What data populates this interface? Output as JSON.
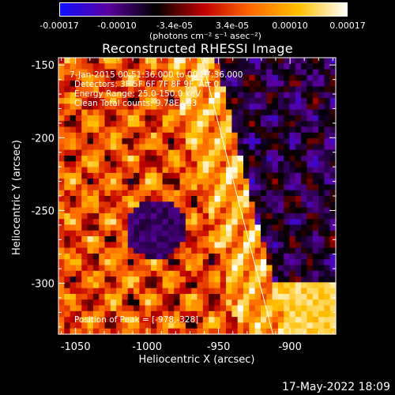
{
  "colorbar": {
    "ticks": [
      "-0.00017",
      "-0.00010",
      "-3.4e-05",
      "3.4e-05",
      "0.00010",
      "0.00017"
    ],
    "units": "(photons cm⁻² s⁻¹ asec⁻²)",
    "colors": [
      "#1010ff",
      "#5a00a0",
      "#000000",
      "#c00000",
      "#ff6a00",
      "#ffc000",
      "#ffffff"
    ]
  },
  "chart_data": {
    "type": "heatmap",
    "title": "Reconstructed RHESSI Image",
    "xlabel": "Heliocentric X (arcsec)",
    "ylabel": "Heliocentric Y (arcsec)",
    "xlim": [
      -1062,
      -868
    ],
    "ylim": [
      -335,
      -145
    ],
    "x_ticks": [
      "-1050",
      "-1000",
      "-950",
      "-900"
    ],
    "x_tick_values": [
      -1050,
      -1000,
      -950,
      -900
    ],
    "y_ticks": [
      "-150",
      "-200",
      "-250",
      "-300"
    ],
    "y_tick_values": [
      -150,
      -200,
      -250,
      -300
    ],
    "zlim": [
      -0.00017,
      0.00017
    ],
    "limb_line": [
      [
        -962,
        -145
      ],
      [
        -912,
        -335
      ]
    ]
  },
  "info": {
    "time_range": "7-Jan-2015 00:51:36.000  to 00:57:36.000",
    "detectors": "Detectors: 3F 5F 6F 7F 8F 9F, Att 0",
    "energy": "Energy Range: 25.0-150.0 keV",
    "clean": "Clean    Total counts: 9.78E+03",
    "peak": "Position of Peak = [-978,-328]"
  },
  "timestamp": "17-May-2022 18:09"
}
